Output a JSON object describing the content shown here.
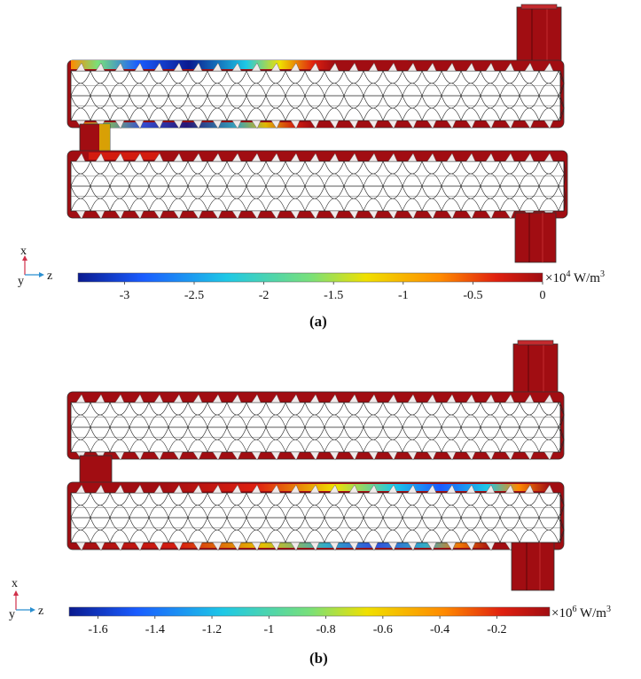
{
  "panels": [
    {
      "id": "a",
      "caption": "(a)",
      "colorbar": {
        "ticks": [
          "-3",
          "-2.5",
          "-2",
          "-1.5",
          "-1",
          "-0.5",
          "0"
        ],
        "unit_prefix": "×10",
        "exponent": "4",
        "unit": " W/m",
        "unit_exp": "3"
      },
      "axes": {
        "x": "x",
        "y": "y",
        "z": "z"
      }
    },
    {
      "id": "b",
      "caption": "(b)",
      "colorbar": {
        "ticks": [
          "-1.6",
          "-1.4",
          "-1.2",
          "-1",
          "-0.8",
          "-0.6",
          "-0.4",
          "-0.2"
        ],
        "unit_prefix": "×10",
        "exponent": "6",
        "unit": " W/m",
        "unit_exp": "3"
      },
      "axes": {
        "x": "x",
        "y": "y",
        "z": "z"
      }
    }
  ],
  "colors": {
    "base": "#a10d12",
    "colormap": [
      "#0a1a8f",
      "#1a5cff",
      "#1ec8e6",
      "#78e07a",
      "#f0e000",
      "#ff8a00",
      "#e0200f",
      "#a10d12"
    ]
  }
}
